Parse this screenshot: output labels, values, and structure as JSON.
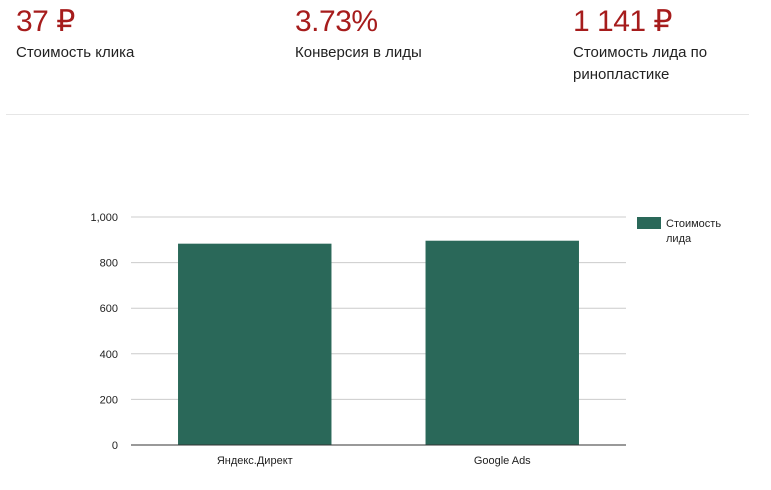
{
  "colors": {
    "accent": "#a61c1c",
    "bar": "#2a6859",
    "grid": "#cccccc",
    "axis": "#333333"
  },
  "stats": [
    {
      "value": "37 ₽",
      "label": "Стоимость клика"
    },
    {
      "value": "3.73%",
      "label": "Конверсия в лиды"
    },
    {
      "value": "1 141 ₽",
      "label": "Стоимость лида по ринопластике"
    }
  ],
  "chart_data": {
    "type": "bar",
    "categories": [
      "Яндекс.Директ",
      "Google Ads"
    ],
    "series": [
      {
        "name": "Стоимость лида",
        "values": [
          883,
          896
        ]
      }
    ],
    "title": "",
    "xlabel": "",
    "ylabel": "",
    "ylim": [
      0,
      1000
    ],
    "yticks": [
      0,
      200,
      400,
      600,
      800,
      1000
    ],
    "ytick_labels": [
      "0",
      "200",
      "400",
      "600",
      "800",
      "1,000"
    ],
    "legend": {
      "position": "right",
      "lines": [
        "Стоимость",
        "лида"
      ]
    },
    "grid": true
  }
}
